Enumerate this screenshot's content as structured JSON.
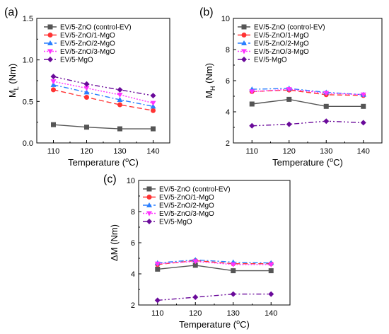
{
  "chart_data": [
    {
      "panel_label": "(a)",
      "type": "line",
      "xlabel": "Temperature (",
      "xlabel_unit": "oC",
      "ylabel": "M",
      "ylabel_sub": "L",
      "ylabel_unit": " (Nm)",
      "x": [
        110,
        120,
        130,
        140
      ],
      "xlim": [
        105,
        145
      ],
      "ylim": [
        0.0,
        1.5
      ],
      "xticks": [
        "110",
        "120",
        "130",
        "140"
      ],
      "yticks": [
        "0.0",
        "0.5",
        "1.0",
        "1.5"
      ],
      "yticks_minor": [
        0.25,
        0.75,
        1.25
      ],
      "legend": "top-right",
      "series": [
        {
          "name": "EV/5-ZnO (control-EV)",
          "values": [
            0.22,
            0.19,
            0.17,
            0.17
          ],
          "color": "#555555",
          "marker": "square",
          "dash": "none"
        },
        {
          "name": "EV/5-ZnO/1-MgO",
          "values": [
            0.64,
            0.55,
            0.46,
            0.39
          ],
          "color": "#ff3333",
          "marker": "circle",
          "dash": "7,4"
        },
        {
          "name": "EV/5-ZnO/2-MgO",
          "values": [
            0.7,
            0.61,
            0.52,
            0.44
          ],
          "color": "#2a7fff",
          "marker": "triangle-up",
          "dash": "7,3,2,3"
        },
        {
          "name": "EV/5-ZnO/3-MgO",
          "values": [
            0.74,
            0.66,
            0.58,
            0.48
          ],
          "color": "#ff33ff",
          "marker": "triangle-down",
          "dash": "2,2"
        },
        {
          "name": "EV/5-MgO",
          "values": [
            0.8,
            0.71,
            0.64,
            0.57
          ],
          "color": "#6a0a9a",
          "marker": "diamond",
          "dash": "7,3,2,3,2,3"
        }
      ]
    },
    {
      "panel_label": "(b)",
      "type": "line",
      "xlabel": "Temperature (",
      "xlabel_unit": "oC",
      "ylabel": "M",
      "ylabel_sub": "H",
      "ylabel_unit": " (Nm)",
      "x": [
        110,
        120,
        130,
        140
      ],
      "xlim": [
        105,
        145
      ],
      "ylim": [
        2,
        10
      ],
      "xticks": [
        "110",
        "120",
        "130",
        "140"
      ],
      "yticks": [
        "2",
        "4",
        "6",
        "8",
        "10"
      ],
      "yticks_minor": [
        3,
        5,
        7,
        9
      ],
      "legend": "top-right",
      "series": [
        {
          "name": "EV/5-ZnO (control-EV)",
          "values": [
            4.5,
            4.8,
            4.35,
            4.35
          ],
          "color": "#555555",
          "marker": "square",
          "dash": "none"
        },
        {
          "name": "EV/5-ZnO/1-MgO",
          "values": [
            5.3,
            5.4,
            5.1,
            5.05
          ],
          "color": "#ff3333",
          "marker": "circle",
          "dash": "7,4"
        },
        {
          "name": "EV/5-ZnO/2-MgO",
          "values": [
            5.45,
            5.5,
            5.25,
            5.1
          ],
          "color": "#2a7fff",
          "marker": "triangle-up",
          "dash": "7,3,2,3"
        },
        {
          "name": "EV/5-ZnO/3-MgO",
          "values": [
            5.3,
            5.45,
            5.2,
            5.1
          ],
          "color": "#ff33ff",
          "marker": "triangle-down",
          "dash": "2,2"
        },
        {
          "name": "EV/5-MgO",
          "values": [
            3.1,
            3.2,
            3.4,
            3.3
          ],
          "color": "#6a0a9a",
          "marker": "diamond",
          "dash": "7,3,2,3,2,3"
        }
      ]
    },
    {
      "panel_label": "(c)",
      "type": "line",
      "xlabel": "Temperature (",
      "xlabel_unit": "oC",
      "ylabel": "ΔM (Nm)",
      "ylabel_sub": "",
      "ylabel_unit": "",
      "x": [
        110,
        120,
        130,
        140
      ],
      "xlim": [
        105,
        145
      ],
      "ylim": [
        2,
        10
      ],
      "xticks": [
        "110",
        "120",
        "130",
        "140"
      ],
      "yticks": [
        "2",
        "4",
        "6",
        "8",
        "10"
      ],
      "yticks_minor": [
        3,
        5,
        7,
        9
      ],
      "legend": "top-right",
      "series": [
        {
          "name": "EV/5-ZnO (control-EV)",
          "values": [
            4.3,
            4.55,
            4.2,
            4.2
          ],
          "color": "#555555",
          "marker": "square",
          "dash": "none"
        },
        {
          "name": "EV/5-ZnO/1-MgO",
          "values": [
            4.6,
            4.85,
            4.65,
            4.65
          ],
          "color": "#ff3333",
          "marker": "circle",
          "dash": "7,4"
        },
        {
          "name": "EV/5-ZnO/2-MgO",
          "values": [
            4.7,
            4.9,
            4.75,
            4.7
          ],
          "color": "#2a7fff",
          "marker": "triangle-up",
          "dash": "7,3,2,3"
        },
        {
          "name": "EV/5-ZnO/3-MgO",
          "values": [
            4.65,
            4.8,
            4.6,
            4.6
          ],
          "color": "#ff33ff",
          "marker": "triangle-down",
          "dash": "2,2"
        },
        {
          "name": "EV/5-MgO",
          "values": [
            2.3,
            2.5,
            2.7,
            2.7
          ],
          "color": "#6a0a9a",
          "marker": "diamond",
          "dash": "7,3,2,3,2,3"
        }
      ]
    }
  ]
}
